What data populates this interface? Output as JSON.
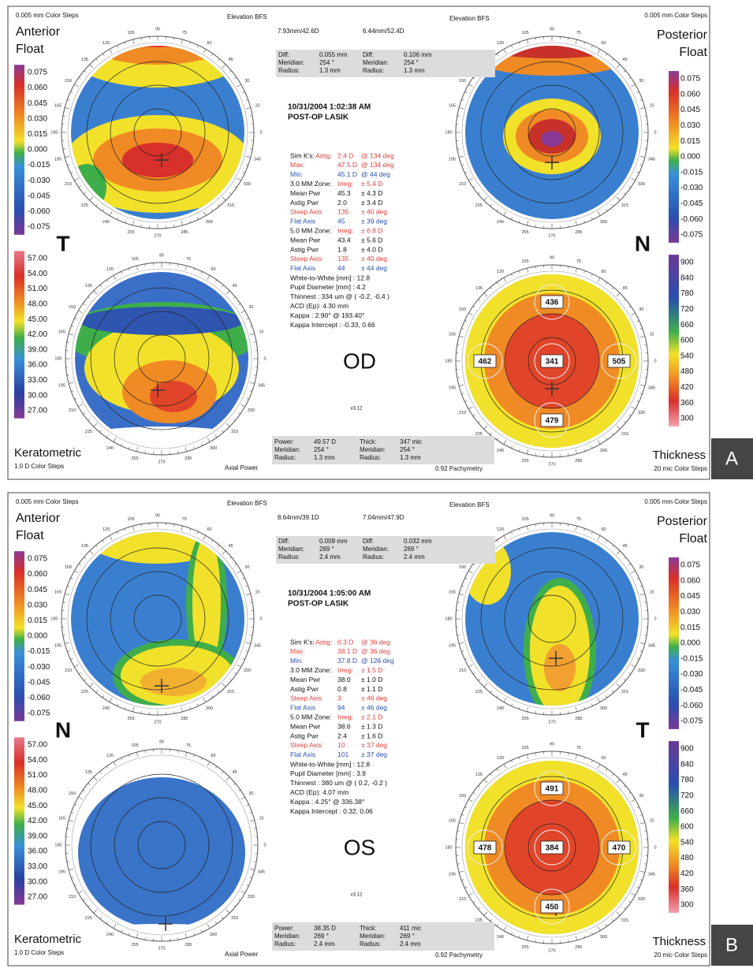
{
  "dial_degrees": [
    "0",
    "15",
    "30",
    "45",
    "60",
    "75",
    "90",
    "105",
    "120",
    "135",
    "150",
    "165",
    "180",
    "195",
    "210",
    "225",
    "240",
    "255",
    "270",
    "285",
    "300",
    "315",
    "330",
    "345"
  ],
  "panels": [
    {
      "label": "A",
      "eye": "OD",
      "left_letter": "T",
      "right_letter": "N",
      "steps_left": "0.005 mm Color Steps",
      "steps_right": "0.005 mm Color Steps",
      "ant_title": [
        "Anterior",
        "Float"
      ],
      "post_title": [
        "Posterior",
        "Float"
      ],
      "bfs_left": "Elevation BFS",
      "bfs_right": "Elevation BFS",
      "bfs_values": [
        "7.93mm/42.6D",
        "6.44mm/52.4D"
      ],
      "diff": [
        [
          "Diff:",
          "0.055 mm",
          "Diff:",
          "0.106 mm"
        ],
        [
          "Meridian:",
          "254 °",
          "Meridian:",
          "254 °"
        ],
        [
          "Radius:",
          "1.3 mm",
          "Radius:",
          "1.3 mm"
        ]
      ],
      "date": "10/31/2004 1:02:38 AM",
      "procedure": "POST-OP LASIK",
      "simk": [
        [
          "Sim K's:",
          "Astig:",
          "2.4 D",
          "@ 134 deg"
        ],
        [
          "Max:",
          "47.5 D",
          "@ 134 deg"
        ],
        [
          "Min:",
          "45.1 D",
          "@ 44 deg"
        ],
        [
          "3.0 MM Zone:",
          "Irreg:",
          "± 5.4 D"
        ],
        [
          "Mean Pwr",
          "45.3",
          "± 4.3 D"
        ],
        [
          "Astig Pwr",
          "2.0",
          "± 3.4 D"
        ],
        [
          "Steep Axis",
          "135",
          "± 40 deg"
        ],
        [
          "Flat Axis",
          "45",
          "± 39 deg"
        ],
        [
          "5.0 MM Zone:",
          "Irreg:",
          "± 6.8 D"
        ],
        [
          "Mean Pwr",
          "43.4",
          "± 5.6 D"
        ],
        [
          "Astig Pwr",
          "1.8",
          "± 4.0 D"
        ],
        [
          "Steep Axis",
          "135",
          "± 40 deg"
        ],
        [
          "Flat Axis",
          "44",
          "± 44 deg"
        ]
      ],
      "info": [
        "White-to-White [mm] : 12.8",
        "Pupil Diameter [mm] : 4.2",
        "Thinnest : 334 um @ ( -0.2, -0.4 )",
        "ACD (Ep): 4.30 mm",
        "Kappa : 2.90° @ 193.40°",
        "Kappa Intercept : -0.33, 0.66"
      ],
      "version": "v3.12",
      "bottom": [
        [
          "Power:",
          "49.57 D",
          "Thick:",
          "347 mic"
        ],
        [
          "Meridian:",
          "254 °",
          "Meridian:",
          "254 °"
        ],
        [
          "Radius:",
          "1.3 mm",
          "Radius:",
          "1.3 mm"
        ]
      ],
      "anterior_scale": [
        "0.075",
        "0.060",
        "0.045",
        "0.030",
        "0.015",
        "0.000",
        "-0.015",
        "-0.030",
        "-0.045",
        "-0.060",
        "-0.075"
      ],
      "posterior_scale": [
        "0.075",
        "0.060",
        "0.045",
        "0.030",
        "0.015",
        "0.000",
        "-0.015",
        "-0.030",
        "-0.045",
        "-0.060",
        "-0.075"
      ],
      "keratometric_scale": [
        "57.00",
        "54.00",
        "51.00",
        "48.00",
        "45.00",
        "42.00",
        "39.00",
        "36.00",
        "33.00",
        "30.00",
        "27.00"
      ],
      "thickness_scale": [
        "900",
        "840",
        "780",
        "720",
        "660",
        "600",
        "540",
        "480",
        "420",
        "360",
        "300"
      ],
      "kerat_title": "Keratometric",
      "kerat_steps": "1.0 D Color Steps",
      "axial": "Axial Power",
      "pachy": "0.92 Pachymetry",
      "thick_title": "Thickness",
      "thick_steps": "20 mic Color Steps",
      "pachy_values": [
        "436",
        "462",
        "341",
        "505",
        "479"
      ]
    },
    {
      "label": "B",
      "eye": "OS",
      "left_letter": "N",
      "right_letter": "T",
      "steps_left": "0.005 mm Color Steps",
      "steps_right": "0.005 mm Color Steps",
      "ant_title": [
        "Anterior",
        "Float"
      ],
      "post_title": [
        "Posterior",
        "Float"
      ],
      "bfs_left": "Elevation BFS",
      "bfs_right": "Elevation BFS",
      "bfs_values": [
        "8.64mm/39.1D",
        "7.04mm/47.9D"
      ],
      "diff": [
        [
          "Diff:",
          "0.009 mm",
          "Diff:",
          "0.032 mm"
        ],
        [
          "Meridian:",
          "269 °",
          "Meridian:",
          "269 °"
        ],
        [
          "Radius:",
          "2.4 mm",
          "Radius:",
          "2.4 mm"
        ]
      ],
      "date": "10/31/2004 1:05:00 AM",
      "procedure": "POST-OP LASIK",
      "simk": [
        [
          "Sim K's:",
          "Astig:",
          "0.3 D",
          "@ 36 deg"
        ],
        [
          "Max:",
          "38.1 D",
          "@ 36 deg"
        ],
        [
          "Min:",
          "37.8 D",
          "@ 126 deg"
        ],
        [
          "3.0 MM Zone:",
          "Irreg:",
          "± 1.5 D"
        ],
        [
          "Mean Pwr",
          "38.0",
          "± 1.0 D"
        ],
        [
          "Astig Pwr",
          "0.8",
          "± 1.1 D"
        ],
        [
          "Steep Axis",
          "3",
          "± 46 deg"
        ],
        [
          "Flat Axis",
          "94",
          "± 46 deg"
        ],
        [
          "5.0 MM Zone:",
          "Irreg:",
          "± 2.1 D"
        ],
        [
          "Mean Pwr",
          "38.6",
          "± 1.3 D"
        ],
        [
          "Astig Pwr",
          "2.4",
          "± 1.6 D"
        ],
        [
          "Steep Axis",
          "10",
          "± 37 deg"
        ],
        [
          "Flat Axis",
          "101",
          "± 37 deg"
        ]
      ],
      "info": [
        "White-to-White [mm] : 12.8",
        "Pupil Diameter [mm] : 3.9",
        "Thinnest : 380 um @ ( 0.2, -0.2 )",
        "ACD (Ep): 4.07 mm",
        "Kappa : 4.25° @ 336.38°",
        "Kappa Intercept : 0.32, 0.06"
      ],
      "version": "v3.12",
      "bottom": [
        [
          "Power:",
          "38.35 D",
          "Thick:",
          "411 mic"
        ],
        [
          "Meridian:",
          "269 °",
          "Meridian:",
          "269 °"
        ],
        [
          "Radius:",
          "2.4 mm",
          "Radius:",
          "2.4 mm"
        ]
      ],
      "anterior_scale": [
        "0.075",
        "0.060",
        "0.045",
        "0.030",
        "0.015",
        "0.000",
        "-0.015",
        "-0.030",
        "-0.045",
        "-0.060",
        "-0.075"
      ],
      "posterior_scale": [
        "0.075",
        "0.060",
        "0.045",
        "0.030",
        "0.015",
        "0.000",
        "-0.015",
        "-0.030",
        "-0.045",
        "-0.060",
        "-0.075"
      ],
      "keratometric_scale": [
        "57.00",
        "54.00",
        "51.00",
        "48.00",
        "45.00",
        "42.00",
        "39.00",
        "36.00",
        "33.00",
        "30.00",
        "27.00"
      ],
      "thickness_scale": [
        "900",
        "840",
        "780",
        "720",
        "660",
        "600",
        "540",
        "480",
        "420",
        "360",
        "300"
      ],
      "kerat_title": "Keratometric",
      "kerat_steps": "1.0 D Color Steps",
      "axial": "Axial Power",
      "pachy": "0.92 Pachymetry",
      "thick_title": "Thickness",
      "thick_steps": "20 mic Color Steps",
      "pachy_values": [
        "491",
        "478",
        "384",
        "470",
        "450"
      ]
    }
  ]
}
